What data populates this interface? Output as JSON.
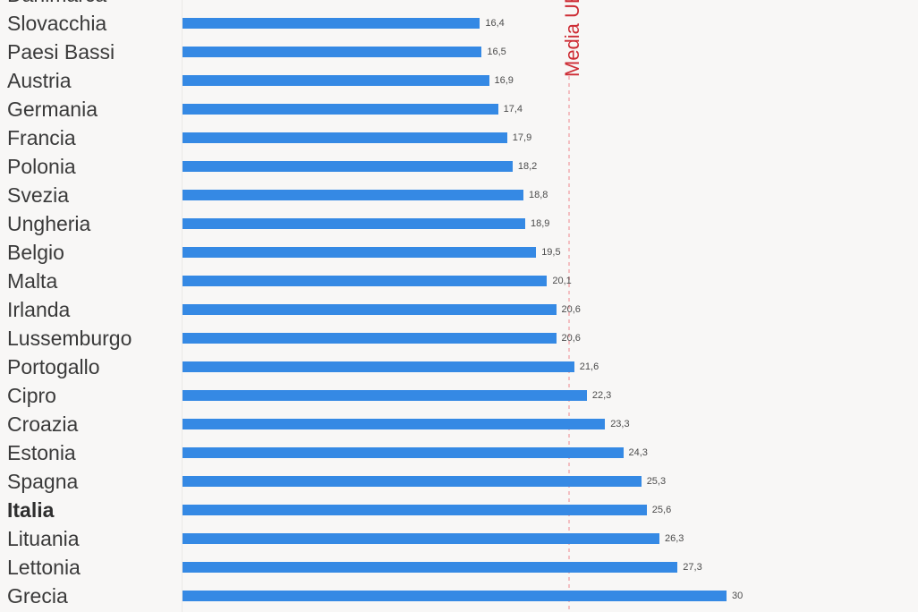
{
  "chart_data": {
    "type": "bar",
    "orientation": "horizontal",
    "categories": [
      "Danimarca",
      "Slovacchia",
      "Paesi Bassi",
      "Austria",
      "Germania",
      "Francia",
      "Polonia",
      "Svezia",
      "Ungheria",
      "Belgio",
      "Malta",
      "Irlanda",
      "Lussemburgo",
      "Portogallo",
      "Cipro",
      "Croazia",
      "Estonia",
      "Spagna",
      "Italia",
      "Lituania",
      "Lettonia",
      "Grecia"
    ],
    "values": [
      null,
      16.4,
      16.5,
      16.9,
      17.4,
      17.9,
      18.2,
      18.8,
      18.9,
      19.5,
      20.1,
      20.6,
      20.6,
      21.6,
      22.3,
      23.3,
      24.3,
      25.3,
      25.6,
      26.3,
      27.3,
      30
    ],
    "value_labels": [
      null,
      "16,4",
      "16,5",
      "16,9",
      "17,4",
      "17,9",
      "18,2",
      "18,8",
      "18,9",
      "19,5",
      "20,1",
      "20,6",
      "20,6",
      "21,6",
      "22,3",
      "23,3",
      "24,3",
      "25,3",
      "25,6",
      "26,3",
      "27,3",
      "30"
    ],
    "xlim": [
      0,
      30
    ],
    "bar_color": "#3589e4",
    "highlight_category": "Italia",
    "partial_top_category": "Danimarca",
    "grid": "off",
    "reference_line": {
      "label": "Media UE",
      "value": 21.3,
      "line_color": "#f3bfc2",
      "label_color": "#cd2c34"
    }
  }
}
